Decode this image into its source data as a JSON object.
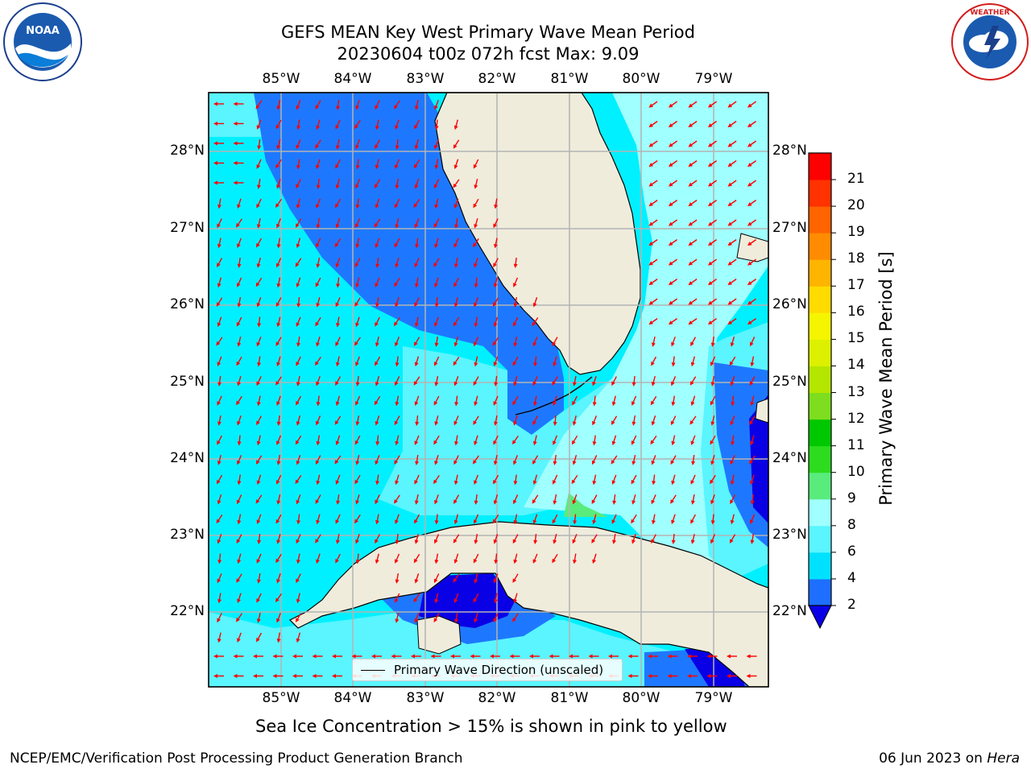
{
  "titles": {
    "line1": "GEFS MEAN Key West Primary Wave Mean Period",
    "line2": "20230604 t00z 072h fcst   Max: 9.09"
  },
  "logos": {
    "left": "NOAA",
    "left_ring": "NATIONAL OCEANIC AND ATMOSPHERIC ADMINISTRATION · U.S. DEPARTMENT OF COMMERCE",
    "right_ring": "NATIONAL WEATHER SERVICE"
  },
  "axes": {
    "lon_labels": [
      "85°W",
      "84°W",
      "83°W",
      "82°W",
      "81°W",
      "80°W",
      "79°W"
    ],
    "lat_labels": [
      "22°N",
      "23°N",
      "24°N",
      "25°N",
      "26°N",
      "27°N",
      "28°N"
    ]
  },
  "legend": {
    "label": "Primary Wave Direction (unscaled)"
  },
  "colorbar": {
    "title": "Primary Wave Mean Period [s]",
    "ticks": [
      "2",
      "4",
      "6",
      "8",
      "9",
      "10",
      "11",
      "12",
      "13",
      "14",
      "15",
      "16",
      "17",
      "18",
      "19",
      "20",
      "21"
    ],
    "colors": [
      "#1e6eff",
      "#00e1ff",
      "#5af5ff",
      "#a0ffff",
      "#5aeb7d",
      "#2ddc1e",
      "#00c800",
      "#7ddd1e",
      "#b4e600",
      "#dcf000",
      "#f5f500",
      "#ffdc00",
      "#ffb400",
      "#ff8c00",
      "#ff6400",
      "#ff3200",
      "#ff0000"
    ]
  },
  "footer": {
    "note": "Sea Ice Concentration > 15% is shown in pink to yellow",
    "credit": "NCEP/EMC/Verification Post Processing Product Generation Branch",
    "date": "06 Jun 2023 on",
    "host": "Hera"
  },
  "colors": {
    "land": "#efecdc",
    "period_2_4": "#1e78ff",
    "period_4_6": "#00f0ff",
    "period_6_8": "#5af5ff",
    "period_8_9": "#a0ffff",
    "period_9_10": "#5aeb7d",
    "period_lt_2": "#0a00e6",
    "arrow": "#ff0000",
    "grid": "#b4b4b4"
  }
}
